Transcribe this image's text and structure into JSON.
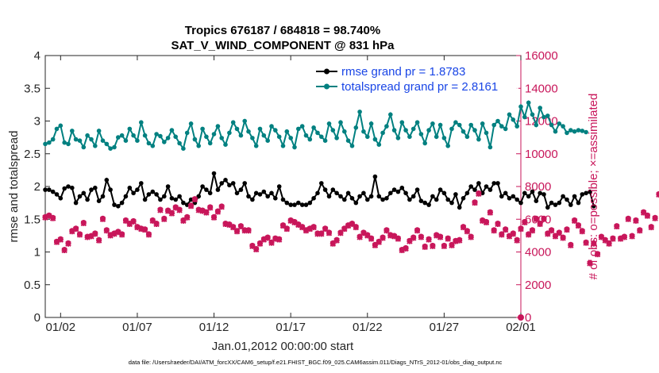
{
  "chart_data": {
    "type": "line",
    "title": "Tropics 676187 / 684818 = 98.740%",
    "subtitle": "SAT_V_WIND_COMPONENT @ 831 hPa",
    "xlabel": "Jan.01,2012 00:00:00 start",
    "ylabel_left": "rmse and totalspread",
    "ylabel_right": "# of obs: o=possible; ×=assimilated",
    "ylim_left": [
      0,
      4
    ],
    "ylim_right": [
      0,
      16000
    ],
    "xlim": [
      0,
      31
    ],
    "yticks_left": [
      "0",
      "0.5",
      "1",
      "1.5",
      "2",
      "2.5",
      "3",
      "3.5",
      "4"
    ],
    "yticks_right": [
      "0",
      "2000",
      "4000",
      "6000",
      "8000",
      "10000",
      "12000",
      "14000",
      "16000"
    ],
    "xticks": [
      {
        "pos": 1,
        "label": "01/02"
      },
      {
        "pos": 6,
        "label": "01/07"
      },
      {
        "pos": 11,
        "label": "01/12"
      },
      {
        "pos": 16,
        "label": "01/17"
      },
      {
        "pos": 21,
        "label": "01/22"
      },
      {
        "pos": 26,
        "label": "01/27"
      },
      {
        "pos": 31,
        "label": "02/01"
      }
    ],
    "footer": "data file: /Users/raeder/DAI/ATM_forcXX/CAM6_setup/f.e21.FHIST_BGC.f09_025.CAM6assim.011/Diags_NTrS_2012-01/obs_diag_output.nc",
    "series": [
      {
        "name": "rmse grand pr = 1.8783",
        "axis": "left",
        "color": "#000000",
        "x_start": 0,
        "x_step": 0.25,
        "values": [
          1.95,
          1.95,
          1.92,
          1.88,
          1.82,
          1.97,
          2.0,
          1.98,
          1.75,
          1.85,
          1.9,
          1.8,
          1.95,
          1.98,
          1.78,
          1.85,
          2.1,
          1.95,
          1.72,
          1.7,
          1.75,
          1.85,
          1.98,
          1.9,
          1.95,
          2.05,
          1.8,
          1.88,
          1.92,
          1.88,
          1.8,
          1.85,
          2.0,
          1.82,
          1.8,
          1.85,
          1.75,
          1.72,
          1.8,
          1.75,
          1.85,
          2.0,
          1.95,
          1.9,
          2.2,
          1.95,
          2.05,
          2.1,
          2.02,
          2.05,
          1.9,
          1.95,
          2.05,
          1.85,
          1.8,
          1.9,
          1.88,
          1.92,
          1.85,
          1.9,
          1.82,
          2.0,
          1.8,
          1.75,
          1.72,
          1.72,
          1.75,
          1.72,
          1.72,
          1.75,
          1.82,
          1.9,
          2.05,
          1.95,
          1.85,
          1.95,
          1.9,
          1.85,
          1.8,
          1.9,
          1.82,
          1.75,
          1.85,
          1.9,
          1.8,
          1.85,
          2.15,
          1.85,
          1.8,
          1.82,
          1.9,
          1.95,
          1.92,
          1.98,
          1.9,
          1.8,
          1.85,
          1.95,
          1.78,
          1.75,
          1.72,
          1.85,
          1.8,
          1.95,
          1.9,
          1.8,
          1.75,
          1.88,
          1.68,
          1.82,
          1.9,
          2.0,
          1.95,
          2.05,
          1.9,
          2.0,
          1.95,
          2.05,
          2.05,
          1.85,
          1.9,
          1.82,
          1.85,
          1.8,
          1.75,
          1.9,
          1.85,
          1.92,
          1.78,
          1.9,
          1.88,
          1.68,
          1.75,
          1.72,
          1.75,
          1.85,
          1.8,
          1.72,
          1.85,
          1.75,
          1.88,
          1.9,
          1.92,
          1.7
        ]
      },
      {
        "name": "totalspread grand pr = 2.8161",
        "axis": "left",
        "color": "#008080",
        "x_start": 0,
        "x_step": 0.25,
        "values": [
          2.65,
          2.67,
          2.72,
          2.88,
          2.93,
          2.67,
          2.65,
          2.85,
          2.72,
          2.7,
          2.6,
          2.78,
          2.72,
          2.62,
          2.85,
          2.7,
          2.65,
          2.58,
          2.6,
          2.75,
          2.78,
          2.7,
          2.88,
          2.78,
          2.7,
          2.98,
          2.78,
          2.66,
          2.62,
          2.8,
          2.77,
          2.68,
          2.74,
          2.86,
          2.76,
          2.66,
          2.58,
          2.82,
          2.96,
          2.72,
          2.62,
          2.88,
          2.76,
          2.66,
          2.8,
          2.92,
          2.74,
          2.64,
          2.82,
          2.98,
          2.88,
          2.78,
          3.0,
          2.84,
          2.74,
          2.62,
          2.88,
          2.78,
          2.7,
          2.92,
          2.86,
          2.76,
          2.62,
          2.84,
          2.74,
          2.6,
          2.88,
          2.92,
          2.78,
          2.72,
          2.9,
          2.82,
          2.76,
          2.7,
          2.96,
          2.86,
          2.74,
          2.98,
          2.84,
          2.7,
          2.62,
          2.9,
          3.14,
          2.84,
          2.76,
          2.96,
          2.72,
          2.64,
          2.82,
          2.92,
          3.1,
          2.86,
          2.74,
          2.98,
          2.86,
          2.76,
          2.88,
          2.98,
          2.8,
          2.66,
          2.86,
          2.96,
          2.76,
          2.94,
          2.74,
          2.62,
          2.88,
          2.98,
          2.94,
          2.84,
          2.76,
          2.94,
          2.86,
          2.72,
          2.96,
          2.82,
          2.6,
          2.94,
          3.0,
          2.92,
          2.88,
          3.1,
          3.02,
          2.92,
          3.22,
          3.06,
          3.28,
          3.1,
          2.94,
          3.2,
          3.06,
          3.08,
          2.94,
          2.84,
          2.96,
          2.92,
          2.82,
          2.86,
          2.84,
          2.86,
          2.85,
          2.83
        ]
      },
      {
        "name": "# of obs assimilated",
        "axis": "right",
        "color": "#c8165a",
        "x_start": 0,
        "x_step": 0.25,
        "values": [
          6100,
          6200,
          6050,
          4600,
          4750,
          4100,
          4500,
          5250,
          5400,
          5050,
          5750,
          4900,
          4950,
          5100,
          4700,
          6000,
          5300,
          5000,
          5100,
          5200,
          5050,
          5900,
          5700,
          5850,
          5500,
          5400,
          5350,
          5050,
          5900,
          5700,
          6550,
          6000,
          6500,
          6350,
          6700,
          6550,
          5900,
          6100,
          6800,
          7200,
          6550,
          6500,
          6400,
          6700,
          6100,
          6450,
          6750,
          5700,
          5650,
          5500,
          5250,
          5550,
          5300,
          5300,
          4350,
          4150,
          4500,
          4750,
          4850,
          4550,
          4800,
          4750,
          5600,
          5400,
          5900,
          5800,
          5650,
          5500,
          5300,
          5400,
          5500,
          5100,
          5100,
          5400,
          5150,
          4500,
          4700,
          5150,
          5400,
          5600,
          5700,
          5500,
          4900,
          5150,
          5000,
          4800,
          4400,
          4600,
          4850,
          5300,
          5000,
          4950,
          4800,
          4100,
          4200,
          4650,
          4850,
          5300,
          4900,
          4300,
          4750,
          4350,
          5000,
          4900,
          4350,
          4800,
          4400,
          4650,
          4700,
          5500,
          5250,
          4900,
          7000,
          7550,
          5900,
          5800,
          6400,
          5300,
          5700,
          5050,
          5350,
          4950,
          5100,
          4700,
          5400,
          5800,
          5050,
          5300,
          6000,
          5700,
          6000,
          5100,
          5300,
          4950,
          5150,
          4850,
          5350,
          4400,
          5900,
          5600,
          5250,
          4550,
          3300,
          4500,
          3850,
          4900,
          4700,
          4500,
          4800,
          5550,
          4800,
          4900,
          6000,
          4950,
          5900,
          5300,
          6400,
          6200,
          5500,
          6050,
          7500,
          7500,
          7700,
          7550,
          8000,
          6000
        ]
      },
      {
        "name": "# of obs possible",
        "axis": "right",
        "color": "#c8165a",
        "x_start": 0,
        "x_step": 0.25,
        "values": [
          6150,
          6250,
          6100,
          4650,
          4800,
          4150,
          4550,
          5300,
          5450,
          5100,
          5800,
          4950,
          5000,
          5150,
          4750,
          6050,
          5350,
          5050,
          5150,
          5250,
          5100,
          5950,
          5750,
          5900,
          5550,
          5450,
          5400,
          5100,
          5950,
          5750,
          6600,
          6050,
          6550,
          6400,
          6750,
          6600,
          5950,
          6150,
          6850,
          7250,
          6600,
          6550,
          6450,
          6750,
          6150,
          6500,
          6800,
          5750,
          5700,
          5550,
          5300,
          5600,
          5350,
          5350,
          4400,
          4200,
          4550,
          4800,
          4900,
          4600,
          4850,
          4800,
          5650,
          5450,
          5950,
          5850,
          5700,
          5550,
          5350,
          5450,
          5550,
          5150,
          5150,
          5450,
          5200,
          4550,
          4750,
          5200,
          5450,
          5650,
          5750,
          5550,
          4950,
          5200,
          5050,
          4850,
          4450,
          4650,
          4900,
          5350,
          5050,
          5000,
          4850,
          4150,
          4250,
          4700,
          4900,
          5350,
          4950,
          4350,
          4800,
          4400,
          5050,
          4950,
          4400,
          4850,
          4450,
          4700,
          4750,
          5550,
          5300,
          4950,
          7050,
          7600,
          5950,
          5850,
          6450,
          5350,
          5750,
          5100,
          5400,
          5000,
          5150,
          4750,
          5450,
          5850,
          5100,
          5350,
          6050,
          5750,
          6050,
          5150,
          5350,
          5000,
          5200,
          4900,
          5400,
          4450,
          5950,
          5650,
          5300,
          4600,
          3350,
          4550,
          3900,
          4950,
          4750,
          4550,
          4850,
          5600,
          4850,
          4950,
          6050,
          5000,
          5950,
          5350,
          6450,
          6250,
          5550,
          6100,
          7550,
          7550,
          7750,
          7600,
          8050,
          6050
        ]
      }
    ],
    "extra_point": {
      "x": 31,
      "value_right": 0,
      "label": "0"
    }
  }
}
